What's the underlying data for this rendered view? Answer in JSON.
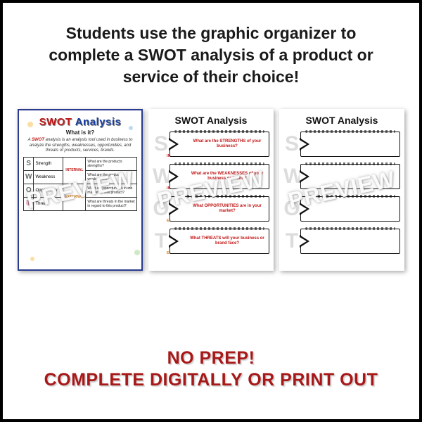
{
  "headline": "Students use the graphic organizer to complete a SWOT analysis of a product or service of their choice!",
  "watermark": "PREVIEW",
  "footer": {
    "line1": "NO PREP!",
    "line2": "COMPLETE DIGITALLY OR PRINT OUT"
  },
  "colors": {
    "border": "#000000",
    "headline": "#1a1a1a",
    "footer_text": "#a81818",
    "swot_red": "#c01818",
    "swot_blue": "#1a3ea0",
    "tag_internal": "#c01818",
    "tag_external": "#d07a1a",
    "ws_letter_grey": "#dcdcdc"
  },
  "sheet1": {
    "title_s": "SWOT",
    "title_rest": " Analysis",
    "subtitle": "What is it?",
    "desc_pre": "A ",
    "desc_red": "SWOT",
    "desc_post": " analysis is an analysis tool used in business to analyze the strengths, weaknesses, opportunities, and threats of products, services, brands.",
    "rows": [
      {
        "letter": "S",
        "word": "Strength",
        "tag": "INTERNAL",
        "tag_cls": "tag-int",
        "q": "What are the products strengths?"
      },
      {
        "letter": "W",
        "word": "Weakness",
        "tag": "INTERNAL",
        "tag_cls": "tag-int",
        "q": "What are the products weaknesses?"
      },
      {
        "letter": "O",
        "word": "Opportunity",
        "tag": "EXTERNAL",
        "tag_cls": "tag-ext",
        "q": "What are opportunities in the market for this product?"
      },
      {
        "letter": "T",
        "word": "Threat",
        "tag": "EXTERNAL",
        "tag_cls": "tag-ext",
        "q": "What are threats in the market in regard to this product?"
      }
    ]
  },
  "worksheet": {
    "title": "SWOT Analysis",
    "rows": [
      {
        "letter": "S",
        "tag": "INTERNAL",
        "tag_color": "#c01818",
        "q": "What are the STRENGTHS of your business?"
      },
      {
        "letter": "W",
        "tag": "INTERNAL",
        "tag_color": "#c01818",
        "q": "What are the WEAKNESSES of your business or brand?"
      },
      {
        "letter": "O",
        "tag": "EXTERNAL",
        "tag_color": "#d07a1a",
        "q": "What OPPORTUNITIES are in your market?"
      },
      {
        "letter": "T",
        "tag": "EXTERNAL",
        "tag_color": "#d07a1a",
        "q": "What THREATS will your business or brand face?"
      }
    ]
  }
}
